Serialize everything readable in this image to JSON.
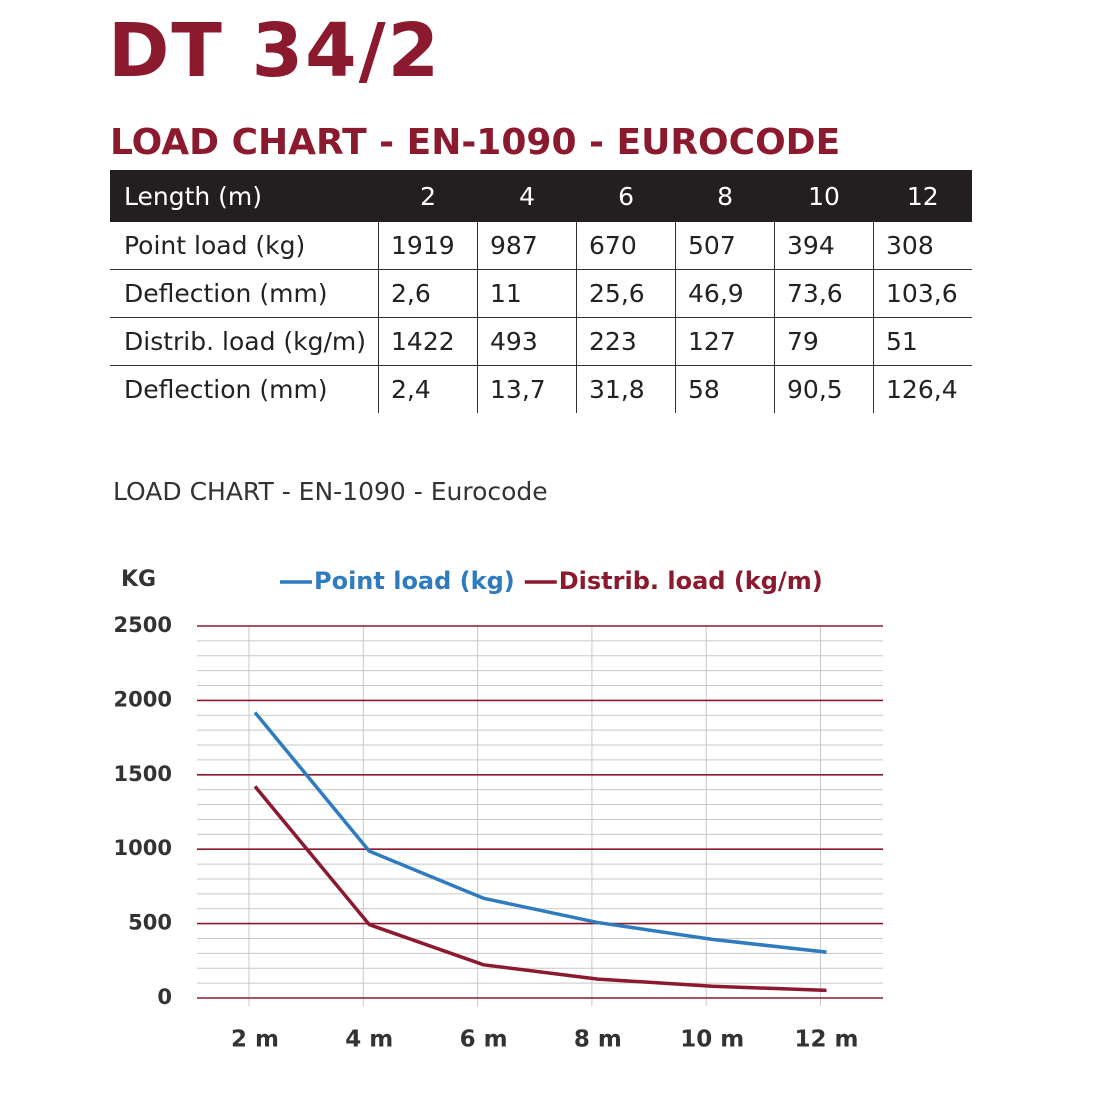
{
  "header": {
    "title": "DT 34/2",
    "subtitle": "LOAD CHART - EN-1090 - EUROCODE"
  },
  "table": {
    "header": [
      "Length (m)",
      "2",
      "4",
      "6",
      "8",
      "10",
      "12"
    ],
    "rows": [
      [
        "Point load (kg)",
        "1919",
        "987",
        "670",
        "507",
        "394",
        "308"
      ],
      [
        "Deflection (mm)",
        "2,6",
        "11",
        "25,6",
        "46,9",
        "73,6",
        "103,6"
      ],
      [
        "Distrib. load (kg/m)",
        "1422",
        "493",
        "223",
        "127",
        "79",
        "51"
      ],
      [
        "Deflection (mm)",
        "2,4",
        "13,7",
        "31,8",
        "58",
        "90,5",
        "126,4"
      ]
    ]
  },
  "chart_data": {
    "type": "line",
    "title": "LOAD CHART - EN-1090 - Eurocode",
    "y_label": "KG",
    "categories": [
      "2 m",
      "4 m",
      "6 m",
      "8 m",
      "10 m",
      "12 m"
    ],
    "series": [
      {
        "name": "Point load (kg)",
        "color": "#2f7bbf",
        "values": [
          1919,
          987,
          670,
          507,
          394,
          308
        ]
      },
      {
        "name": "Distrib. load (kg/m)",
        "color": "#8b1a2e",
        "values": [
          1422,
          493,
          223,
          127,
          79,
          51
        ]
      }
    ],
    "ylim": [
      0,
      2500
    ],
    "yticks": [
      0,
      500,
      1000,
      1500,
      2000,
      2500
    ],
    "grid": true,
    "minor_grid": true,
    "legend": "top"
  }
}
